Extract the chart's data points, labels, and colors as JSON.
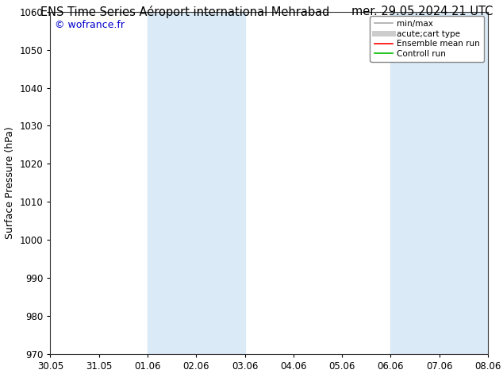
{
  "title_left": "ENS Time Series Aéroport international Mehrabad",
  "title_right": "mer. 29.05.2024 21 UTC",
  "ylabel": "Surface Pressure (hPa)",
  "ylim": [
    970,
    1060
  ],
  "yticks": [
    970,
    980,
    990,
    1000,
    1010,
    1020,
    1030,
    1040,
    1050,
    1060
  ],
  "x_labels": [
    "30.05",
    "31.05",
    "01.06",
    "02.06",
    "03.06",
    "04.06",
    "05.06",
    "06.06",
    "07.06",
    "08.06"
  ],
  "x_values": [
    0,
    1,
    2,
    3,
    4,
    5,
    6,
    7,
    8,
    9
  ],
  "shaded_regions": [
    {
      "xmin": 2.0,
      "xmax": 4.0,
      "color": "#daeaf6"
    },
    {
      "xmin": 7.0,
      "xmax": 7.5,
      "color": "#daeaf6"
    },
    {
      "xmin": 7.5,
      "xmax": 9.0,
      "color": "#daeaf6"
    }
  ],
  "watermark": "© wofrance.fr",
  "watermark_color": "#0000cc",
  "background_color": "#ffffff",
  "plot_bg_color": "#ffffff",
  "legend_items": [
    {
      "label": "min/max",
      "color": "#aaaaaa",
      "lw": 1.2
    },
    {
      "label": "acute;cart type",
      "color": "#cccccc",
      "lw": 5
    },
    {
      "label": "Ensemble mean run",
      "color": "#ff0000",
      "lw": 1.2
    },
    {
      "label": "Controll run",
      "color": "#00bb00",
      "lw": 1.2
    }
  ],
  "title_fontsize": 10.5,
  "axis_fontsize": 9,
  "tick_fontsize": 8.5,
  "figsize": [
    6.34,
    4.9
  ],
  "dpi": 100
}
